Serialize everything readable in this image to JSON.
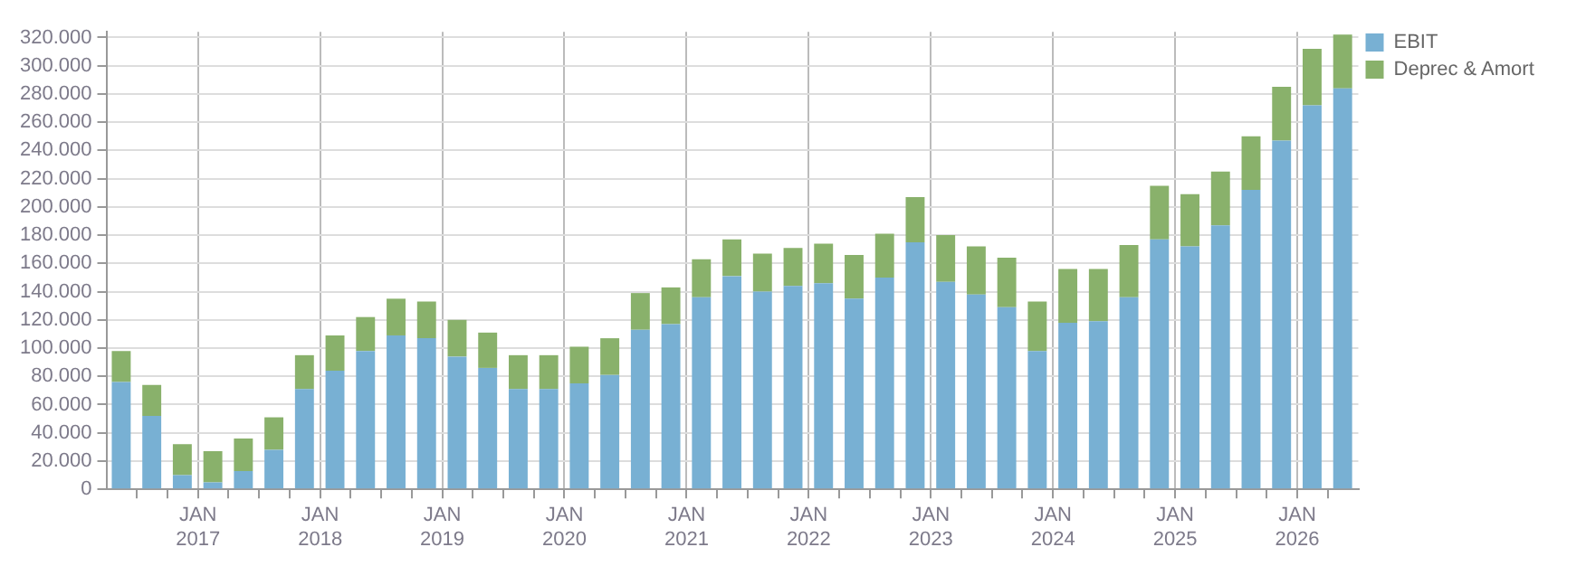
{
  "chart_data": {
    "type": "bar",
    "stacked": true,
    "x": [
      "2016-05-15",
      "2016-08-15",
      "2016-11-15",
      "2017-02-15",
      "2017-05-15",
      "2017-08-15",
      "2017-11-15",
      "2018-02-15",
      "2018-05-15",
      "2018-08-15",
      "2018-11-15",
      "2019-02-15",
      "2019-05-15",
      "2019-08-15",
      "2019-11-15",
      "2020-02-15",
      "2020-05-15",
      "2020-08-15",
      "2020-11-15",
      "2021-02-15",
      "2021-05-15",
      "2021-08-15",
      "2021-11-15",
      "2022-02-15",
      "2022-05-15",
      "2022-08-15",
      "2022-11-15",
      "2023-02-15",
      "2023-05-15",
      "2023-08-15",
      "2023-11-15",
      "2024-02-15",
      "2024-05-15",
      "2024-08-15",
      "2024-11-15",
      "2025-02-15",
      "2025-05-15",
      "2025-08-15",
      "2025-11-15",
      "2026-02-15",
      "2026-05-15"
    ],
    "series": [
      {
        "name": "EBIT",
        "color": "#78b0d3",
        "values": [
          76000,
          52000,
          10000,
          5000,
          13000,
          28000,
          71000,
          84000,
          98000,
          109000,
          107000,
          94000,
          86000,
          71000,
          71000,
          75000,
          81000,
          113000,
          117000,
          136000,
          151000,
          140000,
          144000,
          146000,
          135000,
          150000,
          175000,
          147000,
          138000,
          129000,
          98000,
          118000,
          119000,
          136000,
          177000,
          172000,
          187000,
          212000,
          247000,
          272000,
          284000
        ]
      },
      {
        "name": "Deprec & Amort",
        "color": "#89b16b",
        "values": [
          22000,
          22000,
          22000,
          22000,
          23000,
          23000,
          24000,
          25000,
          24000,
          26000,
          26000,
          26000,
          25000,
          24000,
          24000,
          26000,
          26000,
          26000,
          26000,
          27000,
          26000,
          27000,
          27000,
          28000,
          31000,
          31000,
          32000,
          33000,
          34000,
          35000,
          35000,
          38000,
          37000,
          37000,
          38000,
          37000,
          38000,
          38000,
          38000,
          40000,
          38000
        ]
      }
    ],
    "xlim": [
      "2016-04",
      "2026-07"
    ],
    "xticks": [
      {
        "value": "2016-07",
        "label": null
      },
      {
        "value": "2016-10",
        "label": null
      },
      {
        "value": "2017-01",
        "label": "JAN 2017"
      },
      {
        "value": "2017-04",
        "label": null
      },
      {
        "value": "2017-07",
        "label": null
      },
      {
        "value": "2017-10",
        "label": null
      },
      {
        "value": "2018-01",
        "label": "JAN 2018"
      },
      {
        "value": "2018-04",
        "label": null
      },
      {
        "value": "2018-07",
        "label": null
      },
      {
        "value": "2018-10",
        "label": null
      },
      {
        "value": "2019-01",
        "label": "JAN 2019"
      },
      {
        "value": "2019-04",
        "label": null
      },
      {
        "value": "2019-07",
        "label": null
      },
      {
        "value": "2019-10",
        "label": null
      },
      {
        "value": "2020-01",
        "label": "JAN 2020"
      },
      {
        "value": "2020-04",
        "label": null
      },
      {
        "value": "2020-07",
        "label": null
      },
      {
        "value": "2020-10",
        "label": null
      },
      {
        "value": "2021-01",
        "label": "JAN 2021"
      },
      {
        "value": "2021-04",
        "label": null
      },
      {
        "value": "2021-07",
        "label": null
      },
      {
        "value": "2021-10",
        "label": null
      },
      {
        "value": "2022-01",
        "label": "JAN 2022"
      },
      {
        "value": "2022-04",
        "label": null
      },
      {
        "value": "2022-07",
        "label": null
      },
      {
        "value": "2022-10",
        "label": null
      },
      {
        "value": "2023-01",
        "label": "JAN 2023"
      },
      {
        "value": "2023-04",
        "label": null
      },
      {
        "value": "2023-07",
        "label": null
      },
      {
        "value": "2023-10",
        "label": null
      },
      {
        "value": "2024-01",
        "label": "JAN 2024"
      },
      {
        "value": "2024-04",
        "label": null
      },
      {
        "value": "2024-07",
        "label": null
      },
      {
        "value": "2024-10",
        "label": null
      },
      {
        "value": "2025-01",
        "label": "JAN 2025"
      },
      {
        "value": "2025-04",
        "label": null
      },
      {
        "value": "2025-07",
        "label": null
      },
      {
        "value": "2025-10",
        "label": null
      },
      {
        "value": "2026-01",
        "label": "JAN 2026"
      },
      {
        "value": "2026-04",
        "label": null
      }
    ],
    "ylim": [
      0,
      324000
    ],
    "yticks": [
      0,
      {
        "value": 20000,
        "label": "20.000"
      },
      {
        "value": 40000,
        "label": "40.000"
      },
      {
        "value": 60000,
        "label": "60.000"
      },
      {
        "value": 80000,
        "label": "80.000"
      },
      {
        "value": 100000,
        "label": "100.000"
      },
      {
        "value": 120000,
        "label": "120.000"
      },
      {
        "value": 140000,
        "label": "140.000"
      },
      {
        "value": 160000,
        "label": "160.000"
      },
      {
        "value": 180000,
        "label": "180.000"
      },
      {
        "value": 200000,
        "label": "200.000"
      },
      {
        "value": 220000,
        "label": "220.000"
      },
      {
        "value": 240000,
        "label": "240.000"
      },
      {
        "value": 260000,
        "label": "260.000"
      },
      {
        "value": 280000,
        "label": "280.000"
      },
      {
        "value": 300000,
        "label": "300.000"
      },
      {
        "value": 320000,
        "label": "320.000"
      }
    ],
    "grid": true,
    "legend": "top right"
  }
}
